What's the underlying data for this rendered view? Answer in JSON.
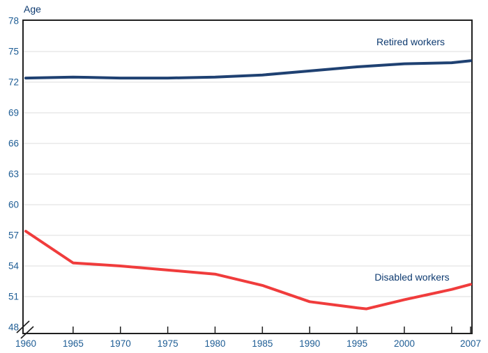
{
  "chart_data": {
    "type": "line",
    "title": "",
    "xlabel": "",
    "ylabel": "Age",
    "xlim": [
      1960,
      2007
    ],
    "ylim": [
      48,
      78
    ],
    "y_ticks": [
      48,
      51,
      54,
      57,
      60,
      63,
      66,
      69,
      72,
      75,
      78
    ],
    "y_gridlines": [
      51,
      54,
      57,
      60,
      63,
      66,
      69,
      72,
      75
    ],
    "y_axis_break": true,
    "x_tick_years": [
      1965,
      1970,
      1975,
      1980,
      1985,
      1990,
      1995,
      2000,
      2005,
      2007
    ],
    "x_label_years": [
      1960,
      1965,
      1970,
      1975,
      1980,
      1985,
      1990,
      1995,
      2000,
      2007
    ],
    "grid": "horizontal-light",
    "legend_position": "inline-labels",
    "colors": {
      "retired_line": "#1f4172",
      "disabled_line": "#f03c3c",
      "tick_label_text": "#1d5c94",
      "label_text": "#0d3a70",
      "gridline": "#dcdcdc",
      "frame": "#1f1f1f",
      "background": "#ffffff"
    },
    "series": [
      {
        "name": "Retired workers",
        "color": "#1f4172",
        "x": [
          1960,
          1965,
          1970,
          1975,
          1980,
          1985,
          1990,
          1995,
          2000,
          2005,
          2007
        ],
        "y": [
          72.4,
          72.5,
          72.4,
          72.4,
          72.5,
          72.7,
          73.1,
          73.5,
          73.8,
          73.9,
          74.1
        ]
      },
      {
        "name": "Disabled workers",
        "color": "#f03c3c",
        "x": [
          1960,
          1965,
          1970,
          1975,
          1980,
          1985,
          1990,
          1995,
          1996,
          2000,
          2005,
          2007
        ],
        "y": [
          57.4,
          54.3,
          54.0,
          53.6,
          53.2,
          52.1,
          50.5,
          49.9,
          49.8,
          50.7,
          51.7,
          52.2
        ]
      }
    ]
  }
}
